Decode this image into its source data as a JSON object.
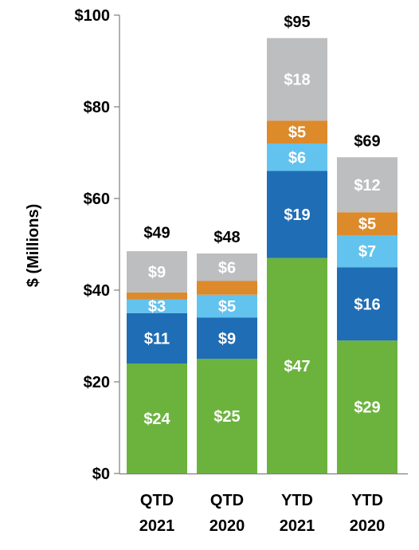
{
  "chart_data": {
    "type": "bar",
    "stacked": true,
    "ylabel": "$ (Millions)",
    "ylim": [
      0,
      100
    ],
    "yticks": [
      {
        "value": 0,
        "label": "$0"
      },
      {
        "value": 20,
        "label": "$20"
      },
      {
        "value": 40,
        "label": "$40"
      },
      {
        "value": 60,
        "label": "$60"
      },
      {
        "value": 80,
        "label": "$80"
      },
      {
        "value": 100,
        "label": "$100"
      }
    ],
    "categories": [
      {
        "line1": "QTD",
        "line2": "2021"
      },
      {
        "line1": "QTD",
        "line2": "2020"
      },
      {
        "line1": "YTD",
        "line2": "2021"
      },
      {
        "line1": "YTD",
        "line2": "2020"
      }
    ],
    "series": [
      {
        "color": "#6cb33e",
        "values": [
          24,
          25,
          47,
          29
        ],
        "labels": [
          "$24",
          "$25",
          "$47",
          "$29"
        ]
      },
      {
        "color": "#1f6db5",
        "values": [
          11,
          9,
          19,
          16
        ],
        "labels": [
          "$11",
          "$9",
          "$19",
          "$16"
        ]
      },
      {
        "color": "#62c3ee",
        "values": [
          3,
          5,
          6,
          7
        ],
        "labels": [
          "$3",
          "$5",
          "$6",
          "$7"
        ]
      },
      {
        "color": "#dd8a2a",
        "values": [
          1.5,
          3,
          5,
          5
        ],
        "labels": [
          "",
          "",
          "$5",
          "$5"
        ]
      },
      {
        "color": "#bcbec0",
        "values": [
          9,
          6,
          18,
          12
        ],
        "labels": [
          "$9",
          "$6",
          "$18",
          "$12"
        ]
      }
    ],
    "totals": [
      49,
      48,
      95,
      69
    ],
    "total_labels": [
      "$49",
      "$48",
      "$95",
      "$69"
    ],
    "legend": "none",
    "grid": false
  }
}
